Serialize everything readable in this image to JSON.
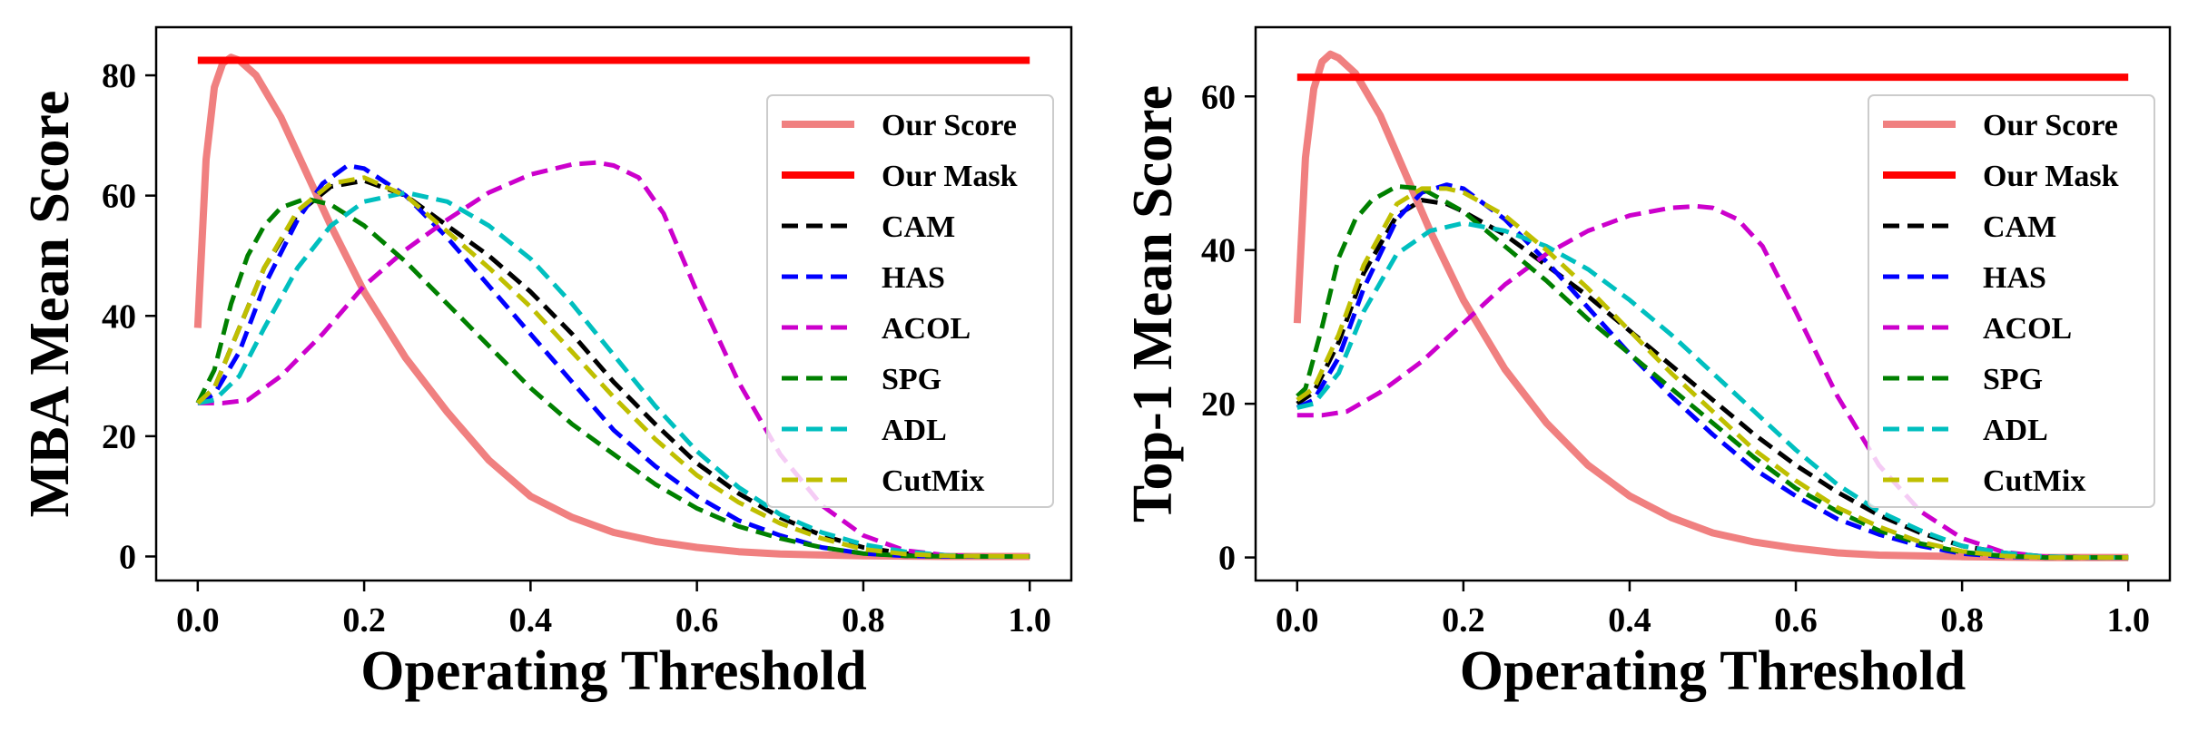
{
  "chart_data": [
    {
      "type": "line",
      "xlabel": "Operating Threshold",
      "ylabel": "MBA Mean Score",
      "xlim": [
        -0.05,
        1.05
      ],
      "ylim": [
        -4,
        88
      ],
      "xticks": [
        "0.0",
        "0.2",
        "0.4",
        "0.6",
        "0.8",
        "1.0"
      ],
      "yticks": [
        "0",
        "20",
        "40",
        "60",
        "80"
      ],
      "legend_position": "right",
      "grid": false,
      "series": [
        {
          "name": "Our Score",
          "color": "#f08080",
          "style": "solid",
          "x": [
            0.0,
            0.01,
            0.02,
            0.03,
            0.04,
            0.05,
            0.07,
            0.1,
            0.13,
            0.16,
            0.2,
            0.25,
            0.3,
            0.35,
            0.4,
            0.45,
            0.5,
            0.55,
            0.6,
            0.65,
            0.7,
            0.8,
            0.9,
            1.0
          ],
          "y": [
            38,
            66,
            78,
            82,
            83,
            82.5,
            80,
            73,
            64,
            55,
            44,
            33,
            24,
            16,
            10,
            6.5,
            4,
            2.5,
            1.5,
            0.8,
            0.4,
            0.1,
            0,
            0
          ]
        },
        {
          "name": "Our Mask",
          "color": "#ff0000",
          "style": "solid",
          "x": [
            0.0,
            1.0
          ],
          "y": [
            82.5,
            82.5
          ]
        },
        {
          "name": "CAM",
          "color": "#000000",
          "style": "dashed",
          "x": [
            0.0,
            0.02,
            0.05,
            0.08,
            0.12,
            0.16,
            0.2,
            0.25,
            0.3,
            0.35,
            0.4,
            0.45,
            0.5,
            0.55,
            0.6,
            0.65,
            0.7,
            0.75,
            0.8,
            0.85,
            0.9,
            0.95,
            1.0
          ],
          "y": [
            25.5,
            28,
            38,
            48,
            57,
            61.5,
            62.5,
            60,
            55,
            50,
            44,
            37,
            29,
            22,
            15.5,
            10.5,
            6.5,
            3.5,
            1.5,
            0.5,
            0.1,
            0,
            0
          ]
        },
        {
          "name": "HAS",
          "color": "#0000ff",
          "style": "dashed",
          "x": [
            0.0,
            0.02,
            0.05,
            0.08,
            0.12,
            0.15,
            0.18,
            0.2,
            0.25,
            0.3,
            0.35,
            0.4,
            0.45,
            0.5,
            0.55,
            0.6,
            0.65,
            0.7,
            0.75,
            0.8,
            0.85,
            0.9,
            1.0
          ],
          "y": [
            25.5,
            27,
            34,
            45,
            56,
            62,
            65,
            64.5,
            60,
            53,
            45,
            37,
            29,
            21,
            15,
            10,
            6,
            3.5,
            1.5,
            0.5,
            0.1,
            0,
            0
          ]
        },
        {
          "name": "ACOL",
          "color": "#cc00cc",
          "style": "dashed",
          "x": [
            0.0,
            0.03,
            0.06,
            0.1,
            0.15,
            0.2,
            0.25,
            0.3,
            0.35,
            0.4,
            0.45,
            0.48,
            0.5,
            0.53,
            0.56,
            0.6,
            0.65,
            0.7,
            0.75,
            0.8,
            0.85,
            0.9,
            0.95,
            1.0
          ],
          "y": [
            25.5,
            25.5,
            26,
            30,
            37,
            45,
            51,
            56,
            60.5,
            63.5,
            65.2,
            65.5,
            65,
            63,
            57,
            44,
            29,
            17,
            8.5,
            3.5,
            1,
            0.2,
            0,
            0
          ]
        },
        {
          "name": "SPG",
          "color": "#008000",
          "style": "dashed",
          "x": [
            0.0,
            0.02,
            0.04,
            0.06,
            0.08,
            0.1,
            0.13,
            0.16,
            0.2,
            0.25,
            0.3,
            0.35,
            0.4,
            0.45,
            0.5,
            0.55,
            0.6,
            0.65,
            0.7,
            0.75,
            0.8,
            0.85,
            0.9,
            1.0
          ],
          "y": [
            25.5,
            31,
            42,
            50,
            55,
            58,
            59.5,
            58.5,
            55,
            49,
            42,
            35,
            28,
            22,
            17,
            12,
            8,
            5,
            3,
            1.5,
            0.5,
            0.1,
            0,
            0
          ]
        },
        {
          "name": "ADL",
          "color": "#00bfbf",
          "style": "dashed",
          "x": [
            0.0,
            0.02,
            0.05,
            0.08,
            0.12,
            0.16,
            0.2,
            0.25,
            0.3,
            0.35,
            0.4,
            0.45,
            0.5,
            0.55,
            0.6,
            0.65,
            0.7,
            0.75,
            0.8,
            0.85,
            0.9,
            0.95,
            1.0
          ],
          "y": [
            25.5,
            26,
            30,
            38,
            48,
            55,
            59,
            60.5,
            59,
            55,
            49.5,
            42,
            33.5,
            25,
            17.5,
            11.5,
            7,
            4,
            2,
            0.8,
            0.2,
            0,
            0
          ]
        },
        {
          "name": "CutMix",
          "color": "#bfbf00",
          "style": "dashed",
          "x": [
            0.0,
            0.02,
            0.05,
            0.08,
            0.12,
            0.16,
            0.2,
            0.25,
            0.3,
            0.35,
            0.4,
            0.45,
            0.5,
            0.55,
            0.6,
            0.65,
            0.7,
            0.75,
            0.8,
            0.85,
            0.9,
            1.0
          ],
          "y": [
            25.5,
            28,
            38,
            48,
            57.5,
            62,
            63,
            60,
            54,
            48,
            41.5,
            34,
            26.5,
            19.5,
            13.5,
            9,
            5.5,
            3,
            1.2,
            0.4,
            0.1,
            0
          ]
        }
      ]
    },
    {
      "type": "line",
      "xlabel": "Operating Threshold",
      "ylabel": "Top-1 Mean Score",
      "xlim": [
        -0.05,
        1.05
      ],
      "ylim": [
        -3,
        69
      ],
      "xticks": [
        "0.0",
        "0.2",
        "0.4",
        "0.6",
        "0.8",
        "1.0"
      ],
      "yticks": [
        "0",
        "20",
        "40",
        "60"
      ],
      "legend_position": "right",
      "grid": false,
      "series": [
        {
          "name": "Our Score",
          "color": "#f08080",
          "style": "solid",
          "x": [
            0.0,
            0.01,
            0.02,
            0.03,
            0.04,
            0.05,
            0.07,
            0.1,
            0.13,
            0.16,
            0.2,
            0.25,
            0.3,
            0.35,
            0.4,
            0.45,
            0.5,
            0.55,
            0.6,
            0.65,
            0.7,
            0.8,
            0.9,
            1.0
          ],
          "y": [
            30.5,
            52,
            61,
            64.5,
            65.5,
            65,
            63,
            57.5,
            50,
            42.5,
            33.5,
            24.5,
            17.5,
            12,
            8,
            5.2,
            3.2,
            2,
            1.2,
            0.6,
            0.3,
            0.1,
            0,
            0
          ]
        },
        {
          "name": "Our Mask",
          "color": "#ff0000",
          "style": "solid",
          "x": [
            0.0,
            1.0
          ],
          "y": [
            62.5,
            62.5
          ]
        },
        {
          "name": "CAM",
          "color": "#000000",
          "style": "dashed",
          "x": [
            0.0,
            0.02,
            0.05,
            0.08,
            0.12,
            0.15,
            0.18,
            0.2,
            0.25,
            0.3,
            0.35,
            0.4,
            0.45,
            0.5,
            0.55,
            0.6,
            0.65,
            0.7,
            0.75,
            0.8,
            0.85,
            0.9,
            0.95,
            1.0
          ],
          "y": [
            20,
            21.5,
            28,
            37,
            44.5,
            46.5,
            46,
            45,
            42,
            38,
            34,
            29.5,
            25,
            20.5,
            16,
            12,
            8.5,
            5.5,
            3.2,
            1.5,
            0.6,
            0.1,
            0,
            0
          ]
        },
        {
          "name": "HAS",
          "color": "#0000ff",
          "style": "dashed",
          "x": [
            0.0,
            0.02,
            0.05,
            0.08,
            0.12,
            0.15,
            0.18,
            0.2,
            0.25,
            0.3,
            0.35,
            0.4,
            0.45,
            0.5,
            0.55,
            0.6,
            0.65,
            0.7,
            0.75,
            0.8,
            0.85,
            0.9,
            1.0
          ],
          "y": [
            19.5,
            20.5,
            26,
            35,
            44,
            47.5,
            48.5,
            48,
            44,
            38.5,
            32.5,
            26.5,
            21,
            16,
            11.5,
            8,
            5,
            3,
            1.5,
            0.5,
            0.1,
            0,
            0
          ]
        },
        {
          "name": "ACOL",
          "color": "#cc00cc",
          "style": "dashed",
          "x": [
            0.0,
            0.03,
            0.06,
            0.1,
            0.15,
            0.2,
            0.25,
            0.3,
            0.35,
            0.4,
            0.45,
            0.48,
            0.5,
            0.53,
            0.56,
            0.6,
            0.65,
            0.7,
            0.75,
            0.8,
            0.85,
            0.9,
            0.95,
            1.0
          ],
          "y": [
            18.5,
            18.5,
            19,
            21.5,
            25.5,
            30.5,
            35.5,
            39.5,
            42.5,
            44.5,
            45.5,
            45.7,
            45.5,
            44,
            40.5,
            32,
            21,
            12,
            6,
            2.5,
            0.7,
            0.1,
            0,
            0
          ]
        },
        {
          "name": "SPG",
          "color": "#008000",
          "style": "dashed",
          "x": [
            0.0,
            0.01,
            0.03,
            0.05,
            0.07,
            0.09,
            0.12,
            0.15,
            0.2,
            0.25,
            0.3,
            0.35,
            0.4,
            0.45,
            0.5,
            0.55,
            0.6,
            0.65,
            0.7,
            0.75,
            0.8,
            0.85,
            0.9,
            1.0
          ],
          "y": [
            21,
            22,
            30,
            39,
            44,
            46.5,
            48.3,
            48,
            45,
            40.5,
            36,
            31,
            26.5,
            22,
            17.5,
            13,
            9,
            6,
            3.5,
            1.8,
            0.7,
            0.2,
            0,
            0
          ]
        },
        {
          "name": "ADL",
          "color": "#00bfbf",
          "style": "dashed",
          "x": [
            0.0,
            0.02,
            0.05,
            0.08,
            0.12,
            0.16,
            0.2,
            0.25,
            0.3,
            0.35,
            0.4,
            0.45,
            0.5,
            0.55,
            0.6,
            0.65,
            0.7,
            0.75,
            0.8,
            0.85,
            0.9,
            0.95,
            1.0
          ],
          "y": [
            19.5,
            20,
            24,
            32,
            39.5,
            42.5,
            43.5,
            42.5,
            40.5,
            37.5,
            33.5,
            29,
            24,
            19,
            14,
            9.5,
            6,
            3.5,
            1.5,
            0.6,
            0.1,
            0,
            0
          ]
        },
        {
          "name": "CutMix",
          "color": "#bfbf00",
          "style": "dashed",
          "x": [
            0.0,
            0.02,
            0.05,
            0.08,
            0.12,
            0.15,
            0.18,
            0.2,
            0.25,
            0.3,
            0.35,
            0.4,
            0.45,
            0.5,
            0.55,
            0.6,
            0.65,
            0.7,
            0.75,
            0.8,
            0.85,
            0.9,
            1.0
          ],
          "y": [
            20.5,
            22,
            29,
            38,
            46,
            48,
            48,
            47.5,
            44.5,
            40,
            35,
            29.5,
            24,
            19,
            14,
            10,
            6.5,
            4,
            2,
            0.8,
            0.2,
            0,
            0
          ]
        }
      ]
    }
  ]
}
